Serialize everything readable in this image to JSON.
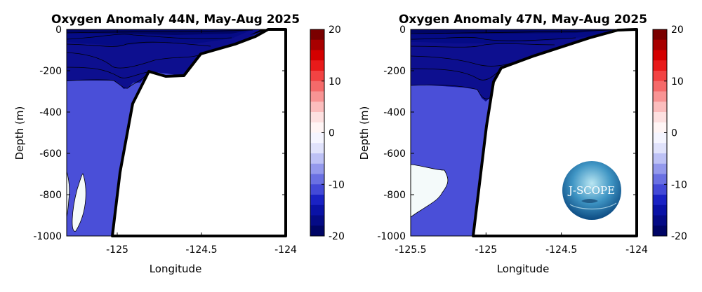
{
  "chart_data": [
    {
      "type": "heatmap",
      "title": "Oxygen Anomaly 44N, May-Aug 2025",
      "xlabel": "Longitude",
      "ylabel": "Depth (m)",
      "xlim": [
        -125.3,
        -124
      ],
      "ylim": [
        -1000,
        0
      ],
      "xticks": [
        -125,
        -124.5,
        -124
      ],
      "xtick_labels": [
        "-125",
        "-124.5",
        "-124"
      ],
      "yticks": [
        0,
        -200,
        -400,
        -600,
        -800,
        -1000
      ],
      "ytick_labels": [
        "0",
        "-200",
        "-400",
        "-600",
        "-800",
        "-1000"
      ],
      "bathymetry": [
        [
          -125.03,
          -1000
        ],
        [
          -124.98,
          -700
        ],
        [
          -124.92,
          -370
        ],
        [
          -124.83,
          -210
        ],
        [
          -124.72,
          -235
        ],
        [
          -124.62,
          -232
        ],
        [
          -124.52,
          -130
        ],
        [
          -124.42,
          -110
        ],
        [
          -124.28,
          -65
        ],
        [
          -124.17,
          -20
        ],
        [
          -124.1,
          0
        ]
      ],
      "shelf_fill_shallow_color": "#000000",
      "deep_water_anomaly_band": [
        -10,
        -5
      ],
      "deep_water_color": "#4a4fd8",
      "upper_layer_depth": -250,
      "upper_layer_color": "#0d0f8f",
      "near_zero_patch": {
        "lon": [
          -125.26,
          -125.2
        ],
        "depth": [
          -700,
          -1000
        ],
        "color": "#f4fafa"
      },
      "colorbar": {
        "range": [
          -20,
          20
        ],
        "ticks": [
          20,
          10,
          0,
          -10,
          -20
        ],
        "tick_labels": [
          "20",
          "10",
          "0",
          "-10",
          "-20"
        ],
        "colors": [
          "#7a0000",
          "#a80000",
          "#d40000",
          "#e81a1a",
          "#f24343",
          "#f56a6a",
          "#f89494",
          "#fbbdbd",
          "#fde0e0",
          "#fff5f5",
          "#f5f5ff",
          "#e0e2fb",
          "#bdc1f5",
          "#9499ec",
          "#6a70e2",
          "#4349d7",
          "#1a22c4",
          "#0a12a6",
          "#050b86",
          "#000566"
        ]
      }
    },
    {
      "type": "heatmap",
      "title": "Oxygen Anomaly 47N, May-Aug 2025",
      "xlabel": "Longitude",
      "ylabel": "Depth (m)",
      "xlim": [
        -125.5,
        -124
      ],
      "ylim": [
        -1000,
        0
      ],
      "xticks": [
        -125.5,
        -125,
        -124.5,
        -124
      ],
      "xtick_labels": [
        "-125.5",
        "-125",
        "-124.5",
        "-124"
      ],
      "yticks": [
        0,
        -200,
        -400,
        -600,
        -800,
        -1000
      ],
      "ytick_labels": [
        "0",
        "-200",
        "-400",
        "-600",
        "-800",
        "-1000"
      ],
      "bathymetry": [
        [
          -125.12,
          -1000
        ],
        [
          -125.05,
          -470
        ],
        [
          -124.98,
          -250
        ],
        [
          -124.95,
          -200
        ],
        [
          -124.8,
          -150
        ],
        [
          -124.6,
          -100
        ],
        [
          -124.4,
          -60
        ],
        [
          -124.25,
          -20
        ],
        [
          -124.15,
          -3
        ],
        [
          -124.02,
          0
        ]
      ],
      "shelf_fill_shallow_color": "#000000",
      "deep_water_anomaly_band": [
        -10,
        -5
      ],
      "deep_water_color": "#4a4fd8",
      "upper_layer_depth": -275,
      "upper_layer_color": "#0d0f8f",
      "near_zero_patch": {
        "lon": [
          -125.5,
          -125.25
        ],
        "depth": [
          -650,
          -900
        ],
        "color": "#f4fafa"
      },
      "logo_text": "J-SCOPE",
      "colorbar": {
        "range": [
          -20,
          20
        ],
        "ticks": [
          20,
          10,
          0,
          -10,
          -20
        ],
        "tick_labels": [
          "20",
          "10",
          "0",
          "-10",
          "-20"
        ],
        "colors": [
          "#7a0000",
          "#a80000",
          "#d40000",
          "#e81a1a",
          "#f24343",
          "#f56a6a",
          "#f89494",
          "#fbbdbd",
          "#fde0e0",
          "#fff5f5",
          "#f5f5ff",
          "#e0e2fb",
          "#bdc1f5",
          "#9499ec",
          "#6a70e2",
          "#4349d7",
          "#1a22c4",
          "#0a12a6",
          "#050b86",
          "#000566"
        ]
      }
    }
  ]
}
